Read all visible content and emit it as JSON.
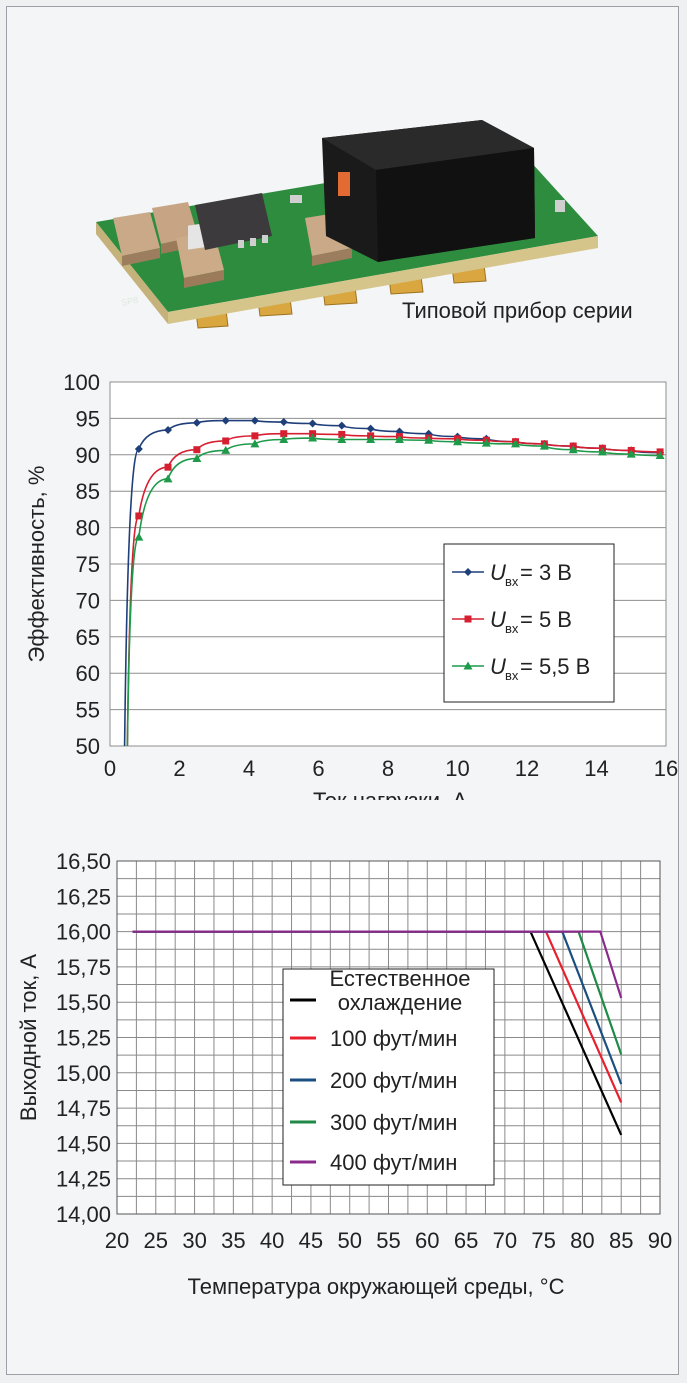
{
  "photo": {
    "caption": "Типовой прибор серии",
    "description_icon": "dc-dc-module-photo-icon"
  },
  "chart_data": [
    {
      "type": "line",
      "xlabel": "Ток нагрузки, А",
      "ylabel": "Эффективность, %",
      "xlim": [
        0,
        16
      ],
      "ylim": [
        50,
        100
      ],
      "xticks": [
        "0",
        "2",
        "4",
        "6",
        "8",
        "10",
        "12",
        "14",
        "16"
      ],
      "yticks": [
        "50",
        "55",
        "60",
        "65",
        "70",
        "75",
        "80",
        "85",
        "90",
        "95",
        "100"
      ],
      "grid": "horizontal",
      "legend_position": "right-middle",
      "series": [
        {
          "name": "U_вх = 3 В",
          "legend_prefix": "U",
          "legend_sub": "вх",
          "legend_suffix": " = 3 В",
          "color": "#1f3f7a",
          "marker": "diamond",
          "x": [
            0.42,
            0.83,
            1.67,
            2.5,
            3.33,
            4.17,
            5.0,
            5.83,
            6.67,
            7.5,
            8.33,
            9.17,
            10.0,
            10.83,
            11.67,
            12.5,
            13.33,
            14.17,
            15.0,
            15.83
          ],
          "y": [
            50,
            90.8,
            93.4,
            94.4,
            94.7,
            94.7,
            94.5,
            94.3,
            94.0,
            93.6,
            93.2,
            92.9,
            92.5,
            92.2,
            91.8,
            91.5,
            91.2,
            90.9,
            90.6,
            90.3
          ]
        },
        {
          "name": "U_вх = 5 В",
          "legend_prefix": "U",
          "legend_sub": "вх",
          "legend_suffix": " = 5 В",
          "color": "#d62031",
          "marker": "square",
          "x": [
            0.5,
            0.83,
            1.67,
            2.5,
            3.33,
            4.17,
            5.0,
            5.83,
            6.67,
            7.5,
            8.33,
            9.17,
            10.0,
            10.83,
            11.67,
            12.5,
            13.33,
            14.17,
            15.0,
            15.83
          ],
          "y": [
            50,
            81.6,
            88.3,
            90.7,
            91.9,
            92.6,
            92.9,
            92.9,
            92.8,
            92.6,
            92.5,
            92.3,
            92.2,
            92.0,
            91.8,
            91.5,
            91.2,
            90.9,
            90.6,
            90.4
          ]
        },
        {
          "name": "U_вх = 5,5 В",
          "legend_prefix": "U",
          "legend_sub": "вх",
          "legend_suffix": " = 5,5 В",
          "color": "#1e9a4a",
          "marker": "triangle",
          "x": [
            0.5,
            0.83,
            1.67,
            2.5,
            3.33,
            4.17,
            5.0,
            5.83,
            6.67,
            7.5,
            8.33,
            9.17,
            10.0,
            10.83,
            11.67,
            12.5,
            13.33,
            14.17,
            15.0,
            15.83
          ],
          "y": [
            50,
            78.7,
            86.7,
            89.5,
            90.6,
            91.5,
            92.1,
            92.3,
            92.1,
            92.1,
            92.1,
            92.0,
            91.8,
            91.6,
            91.5,
            91.2,
            90.7,
            90.4,
            90.1,
            89.9
          ]
        }
      ]
    },
    {
      "type": "line",
      "xlabel": "Температура окружающей среды, °С",
      "ylabel": "Выходной ток, А",
      "xlim": [
        20,
        90
      ],
      "ylim": [
        14.0,
        16.5
      ],
      "xticks": [
        "20",
        "25",
        "30",
        "35",
        "40",
        "45",
        "50",
        "55",
        "60",
        "65",
        "70",
        "75",
        "80",
        "85",
        "90"
      ],
      "yticks": [
        "14,00",
        "14,25",
        "14,50",
        "14,75",
        "15,00",
        "15,25",
        "15,50",
        "15,75",
        "16,00",
        "16,25",
        "16,50"
      ],
      "grid": "both",
      "legend_position": "center",
      "series": [
        {
          "name": "Естественное охлаждение",
          "legend_lines": [
            "Естественное",
            "охлаждение"
          ],
          "color": "#000000",
          "x": [
            22,
            73.3,
            85
          ],
          "y": [
            16.0,
            16.0,
            14.56
          ]
        },
        {
          "name": "100 фут/мин",
          "legend_lines": [
            "100 фут/мин"
          ],
          "color": "#e8202e",
          "x": [
            22,
            75.3,
            85
          ],
          "y": [
            16.0,
            16.0,
            14.79
          ]
        },
        {
          "name": "200 фут/мин",
          "legend_lines": [
            "200 фут/мин"
          ],
          "color": "#1b4f82",
          "x": [
            22,
            77.4,
            85
          ],
          "y": [
            16.0,
            16.0,
            14.92
          ]
        },
        {
          "name": "300 фут/мин",
          "legend_lines": [
            "300 фут/мин"
          ],
          "color": "#1e8a45",
          "x": [
            22,
            79.5,
            85
          ],
          "y": [
            16.0,
            16.0,
            15.13
          ]
        },
        {
          "name": "400 фут/мин",
          "legend_lines": [
            "400 фут/мин"
          ],
          "color": "#8a2b8c",
          "x": [
            22,
            82.3,
            85
          ],
          "y": [
            16.0,
            16.0,
            15.53
          ]
        }
      ]
    }
  ]
}
